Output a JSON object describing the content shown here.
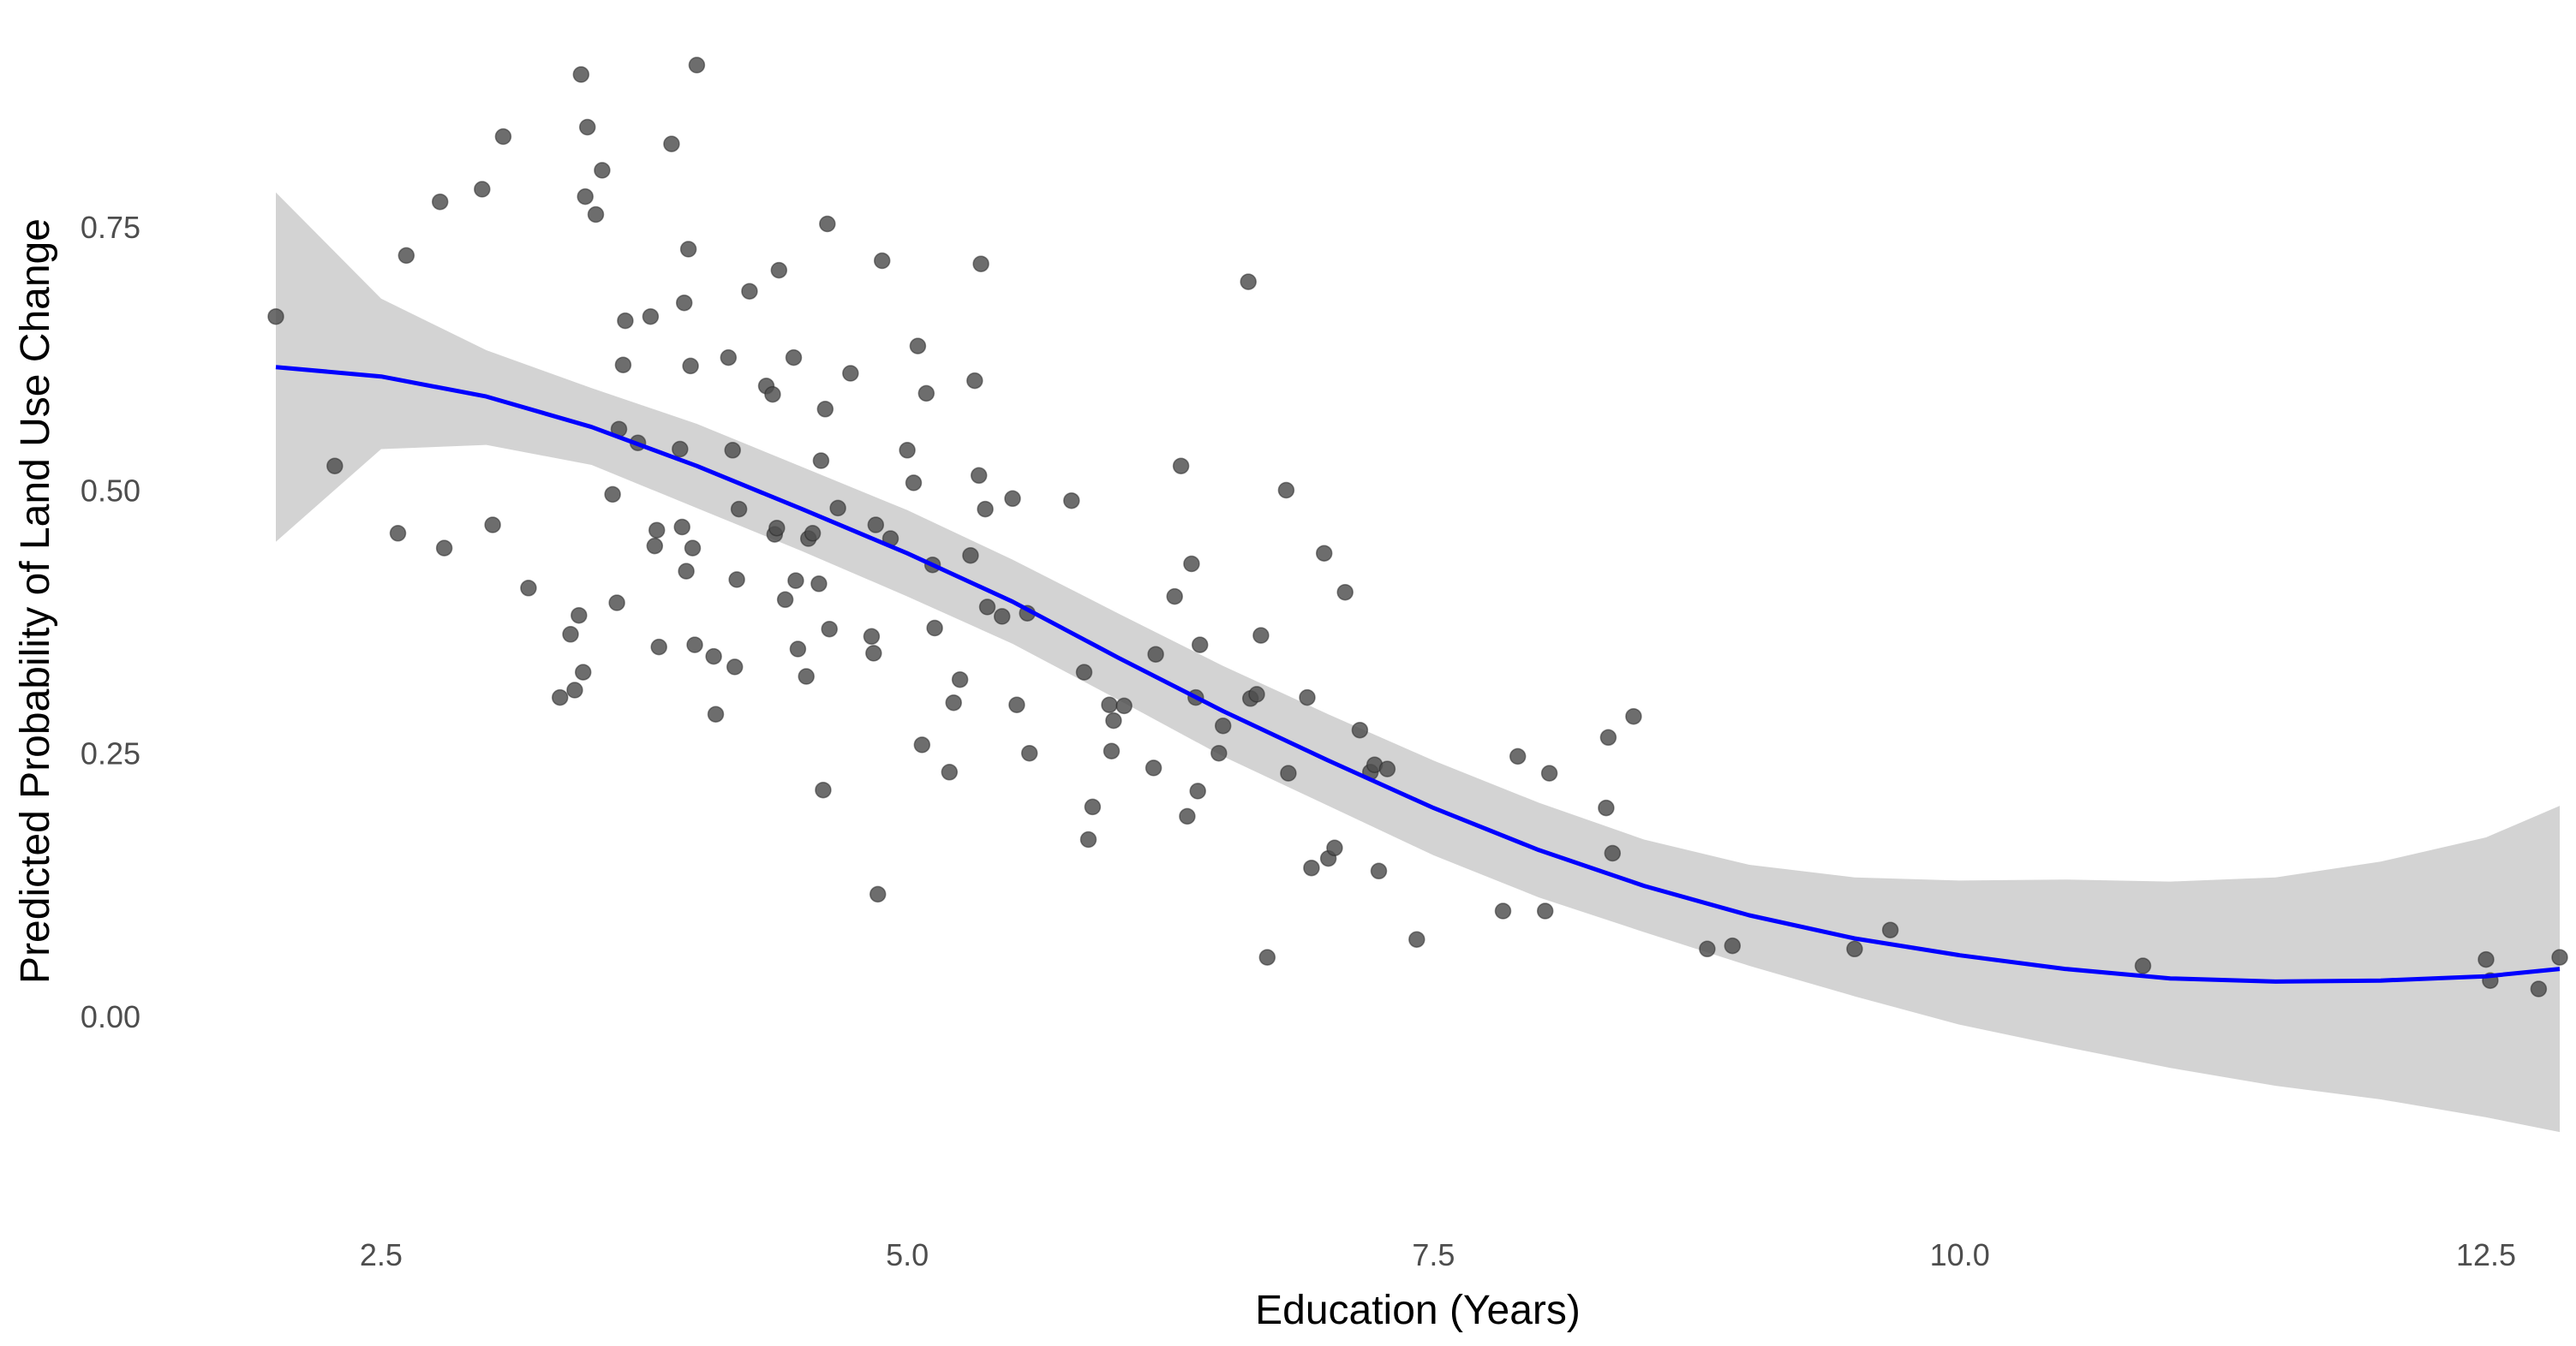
{
  "chart_data": {
    "type": "scatter",
    "title": "",
    "xlabel": "Education (Years)",
    "ylabel": "Predicted Probability of Land Use Change",
    "xlim": [
      2.0,
      12.85
    ],
    "ylim": [
      -0.14,
      0.93
    ],
    "x_ticks": [
      2.5,
      5.0,
      7.5,
      10.0,
      12.5
    ],
    "x_tick_labels": [
      "2.5",
      "5.0",
      "7.5",
      "10.0",
      "12.5"
    ],
    "y_ticks": [
      0.0,
      0.25,
      0.5,
      0.75
    ],
    "y_tick_labels": [
      "0.00",
      "0.25",
      "0.50",
      "0.75"
    ],
    "grid": false,
    "legend": "none",
    "colors": {
      "points": "#4d4d4d",
      "smooth_line": "#0000ff",
      "ribbon": "#d3d3d3"
    },
    "points": [
      {
        "x": 2.0,
        "y": 0.665
      },
      {
        "x": 2.28,
        "y": 0.523
      },
      {
        "x": 2.58,
        "y": 0.459
      },
      {
        "x": 2.62,
        "y": 0.723
      },
      {
        "x": 2.78,
        "y": 0.774
      },
      {
        "x": 2.8,
        "y": 0.445
      },
      {
        "x": 2.98,
        "y": 0.786
      },
      {
        "x": 3.03,
        "y": 0.467
      },
      {
        "x": 3.08,
        "y": 0.836
      },
      {
        "x": 3.2,
        "y": 0.407
      },
      {
        "x": 3.35,
        "y": 0.303
      },
      {
        "x": 3.4,
        "y": 0.363
      },
      {
        "x": 3.42,
        "y": 0.31
      },
      {
        "x": 3.44,
        "y": 0.381
      },
      {
        "x": 3.45,
        "y": 0.895
      },
      {
        "x": 3.46,
        "y": 0.327
      },
      {
        "x": 3.47,
        "y": 0.779
      },
      {
        "x": 3.48,
        "y": 0.845
      },
      {
        "x": 3.52,
        "y": 0.762
      },
      {
        "x": 3.55,
        "y": 0.804
      },
      {
        "x": 3.6,
        "y": 0.496
      },
      {
        "x": 3.62,
        "y": 0.393
      },
      {
        "x": 3.63,
        "y": 0.558
      },
      {
        "x": 3.65,
        "y": 0.619
      },
      {
        "x": 3.66,
        "y": 0.661
      },
      {
        "x": 3.72,
        "y": 0.545
      },
      {
        "x": 3.78,
        "y": 0.665
      },
      {
        "x": 3.8,
        "y": 0.447
      },
      {
        "x": 3.81,
        "y": 0.462
      },
      {
        "x": 3.82,
        "y": 0.351
      },
      {
        "x": 3.88,
        "y": 0.829
      },
      {
        "x": 3.92,
        "y": 0.539
      },
      {
        "x": 3.93,
        "y": 0.465
      },
      {
        "x": 3.94,
        "y": 0.678
      },
      {
        "x": 3.95,
        "y": 0.423
      },
      {
        "x": 3.96,
        "y": 0.729
      },
      {
        "x": 3.97,
        "y": 0.618
      },
      {
        "x": 3.98,
        "y": 0.445
      },
      {
        "x": 3.99,
        "y": 0.353
      },
      {
        "x": 4.0,
        "y": 0.904
      },
      {
        "x": 4.08,
        "y": 0.342
      },
      {
        "x": 4.09,
        "y": 0.287
      },
      {
        "x": 4.15,
        "y": 0.626
      },
      {
        "x": 4.17,
        "y": 0.538
      },
      {
        "x": 4.18,
        "y": 0.332
      },
      {
        "x": 4.19,
        "y": 0.415
      },
      {
        "x": 4.2,
        "y": 0.482
      },
      {
        "x": 4.25,
        "y": 0.689
      },
      {
        "x": 4.33,
        "y": 0.599
      },
      {
        "x": 4.36,
        "y": 0.591
      },
      {
        "x": 4.37,
        "y": 0.458
      },
      {
        "x": 4.38,
        "y": 0.464
      },
      {
        "x": 4.39,
        "y": 0.709
      },
      {
        "x": 4.42,
        "y": 0.396
      },
      {
        "x": 4.46,
        "y": 0.626
      },
      {
        "x": 4.47,
        "y": 0.414
      },
      {
        "x": 4.48,
        "y": 0.349
      },
      {
        "x": 4.52,
        "y": 0.323
      },
      {
        "x": 4.53,
        "y": 0.454
      },
      {
        "x": 4.55,
        "y": 0.459
      },
      {
        "x": 4.58,
        "y": 0.411
      },
      {
        "x": 4.59,
        "y": 0.528
      },
      {
        "x": 4.6,
        "y": 0.215
      },
      {
        "x": 4.61,
        "y": 0.577
      },
      {
        "x": 4.62,
        "y": 0.753
      },
      {
        "x": 4.63,
        "y": 0.368
      },
      {
        "x": 4.67,
        "y": 0.483
      },
      {
        "x": 4.73,
        "y": 0.611
      },
      {
        "x": 4.83,
        "y": 0.361
      },
      {
        "x": 4.84,
        "y": 0.345
      },
      {
        "x": 4.85,
        "y": 0.467
      },
      {
        "x": 4.86,
        "y": 0.116
      },
      {
        "x": 4.88,
        "y": 0.718
      },
      {
        "x": 4.92,
        "y": 0.454
      },
      {
        "x": 5.0,
        "y": 0.538
      },
      {
        "x": 5.03,
        "y": 0.507
      },
      {
        "x": 5.05,
        "y": 0.637
      },
      {
        "x": 5.07,
        "y": 0.258
      },
      {
        "x": 5.09,
        "y": 0.592
      },
      {
        "x": 5.12,
        "y": 0.429
      },
      {
        "x": 5.13,
        "y": 0.369
      },
      {
        "x": 5.2,
        "y": 0.232
      },
      {
        "x": 5.22,
        "y": 0.298
      },
      {
        "x": 5.25,
        "y": 0.32
      },
      {
        "x": 5.3,
        "y": 0.438
      },
      {
        "x": 5.32,
        "y": 0.604
      },
      {
        "x": 5.34,
        "y": 0.514
      },
      {
        "x": 5.35,
        "y": 0.715
      },
      {
        "x": 5.37,
        "y": 0.482
      },
      {
        "x": 5.38,
        "y": 0.389
      },
      {
        "x": 5.45,
        "y": 0.38
      },
      {
        "x": 5.5,
        "y": 0.492
      },
      {
        "x": 5.52,
        "y": 0.296
      },
      {
        "x": 5.57,
        "y": 0.383
      },
      {
        "x": 5.58,
        "y": 0.25
      },
      {
        "x": 5.78,
        "y": 0.49
      },
      {
        "x": 5.84,
        "y": 0.327
      },
      {
        "x": 5.86,
        "y": 0.168
      },
      {
        "x": 5.88,
        "y": 0.199
      },
      {
        "x": 5.96,
        "y": 0.296
      },
      {
        "x": 5.97,
        "y": 0.252
      },
      {
        "x": 5.98,
        "y": 0.281
      },
      {
        "x": 6.03,
        "y": 0.295
      },
      {
        "x": 6.17,
        "y": 0.236
      },
      {
        "x": 6.18,
        "y": 0.344
      },
      {
        "x": 6.27,
        "y": 0.399
      },
      {
        "x": 6.3,
        "y": 0.523
      },
      {
        "x": 6.33,
        "y": 0.19
      },
      {
        "x": 6.35,
        "y": 0.43
      },
      {
        "x": 6.37,
        "y": 0.303
      },
      {
        "x": 6.38,
        "y": 0.214
      },
      {
        "x": 6.39,
        "y": 0.353
      },
      {
        "x": 6.48,
        "y": 0.25
      },
      {
        "x": 6.5,
        "y": 0.276
      },
      {
        "x": 6.62,
        "y": 0.698
      },
      {
        "x": 6.63,
        "y": 0.302
      },
      {
        "x": 6.66,
        "y": 0.306
      },
      {
        "x": 6.68,
        "y": 0.362
      },
      {
        "x": 6.71,
        "y": 0.056
      },
      {
        "x": 6.8,
        "y": 0.5
      },
      {
        "x": 6.81,
        "y": 0.231
      },
      {
        "x": 6.9,
        "y": 0.303
      },
      {
        "x": 6.92,
        "y": 0.141
      },
      {
        "x": 6.98,
        "y": 0.44
      },
      {
        "x": 7.0,
        "y": 0.15
      },
      {
        "x": 7.03,
        "y": 0.16
      },
      {
        "x": 7.08,
        "y": 0.403
      },
      {
        "x": 7.15,
        "y": 0.272
      },
      {
        "x": 7.2,
        "y": 0.232
      },
      {
        "x": 7.22,
        "y": 0.239
      },
      {
        "x": 7.24,
        "y": 0.138
      },
      {
        "x": 7.28,
        "y": 0.235
      },
      {
        "x": 7.42,
        "y": 0.073
      },
      {
        "x": 7.83,
        "y": 0.1
      },
      {
        "x": 7.9,
        "y": 0.247
      },
      {
        "x": 8.03,
        "y": 0.1
      },
      {
        "x": 8.05,
        "y": 0.231
      },
      {
        "x": 8.32,
        "y": 0.198
      },
      {
        "x": 8.33,
        "y": 0.265
      },
      {
        "x": 8.35,
        "y": 0.155
      },
      {
        "x": 8.45,
        "y": 0.285
      },
      {
        "x": 8.8,
        "y": 0.064
      },
      {
        "x": 8.92,
        "y": 0.067
      },
      {
        "x": 9.5,
        "y": 0.064
      },
      {
        "x": 9.67,
        "y": 0.082
      },
      {
        "x": 10.87,
        "y": 0.048
      },
      {
        "x": 12.5,
        "y": 0.054
      },
      {
        "x": 12.52,
        "y": 0.034
      },
      {
        "x": 12.75,
        "y": 0.026
      },
      {
        "x": 12.85,
        "y": 0.056
      }
    ],
    "smooth_line": {
      "x": [
        2.0,
        2.5,
        3.0,
        3.5,
        4.0,
        4.5,
        5.0,
        5.5,
        6.0,
        6.5,
        7.0,
        7.5,
        8.0,
        8.5,
        9.0,
        9.5,
        10.0,
        10.5,
        11.0,
        11.5,
        12.0,
        12.5,
        12.85
      ],
      "y": [
        0.617,
        0.608,
        0.589,
        0.56,
        0.523,
        0.482,
        0.44,
        0.394,
        0.341,
        0.29,
        0.243,
        0.198,
        0.158,
        0.124,
        0.096,
        0.074,
        0.058,
        0.045,
        0.036,
        0.033,
        0.034,
        0.038,
        0.045
      ]
    },
    "ribbon": {
      "x": [
        2.0,
        2.5,
        3.0,
        3.5,
        4.0,
        4.5,
        5.0,
        5.5,
        6.0,
        6.5,
        7.0,
        7.5,
        8.0,
        8.5,
        9.0,
        9.5,
        10.0,
        10.5,
        11.0,
        11.5,
        12.0,
        12.5,
        12.85
      ],
      "upper": [
        0.783,
        0.682,
        0.633,
        0.597,
        0.563,
        0.522,
        0.481,
        0.434,
        0.383,
        0.333,
        0.287,
        0.243,
        0.203,
        0.168,
        0.144,
        0.132,
        0.129,
        0.13,
        0.128,
        0.132,
        0.147,
        0.17,
        0.2
      ],
      "lower": [
        0.451,
        0.539,
        0.543,
        0.524,
        0.483,
        0.442,
        0.399,
        0.354,
        0.301,
        0.247,
        0.2,
        0.153,
        0.113,
        0.08,
        0.048,
        0.019,
        -0.008,
        -0.029,
        -0.049,
        -0.066,
        -0.079,
        -0.096,
        -0.11
      ]
    }
  }
}
